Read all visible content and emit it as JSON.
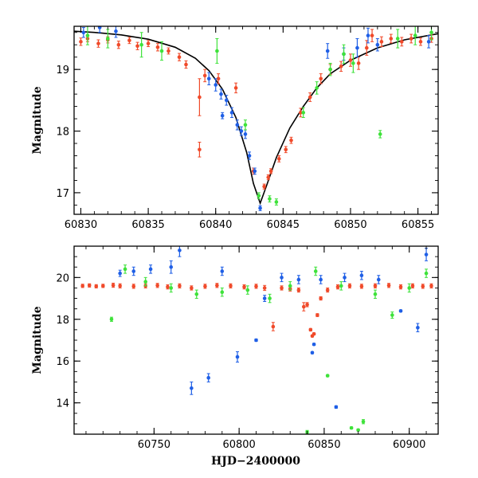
{
  "chart_data": [
    {
      "type": "scatter",
      "ylabel": "Magnitude",
      "xlabel": "",
      "xlim": [
        60829.5,
        60856.5
      ],
      "ylim": [
        19.7,
        16.65
      ],
      "y_inverted": true,
      "xticks": [
        60830,
        60835,
        60840,
        60845,
        60850,
        60855
      ],
      "yticks": [
        17,
        18,
        19
      ],
      "colors": {
        "red": "#f04a2a",
        "blue": "#1f5fe6",
        "green": "#3ee23a",
        "model": "#000000"
      },
      "model_curve": [
        [
          60829.5,
          19.62
        ],
        [
          60831,
          19.6
        ],
        [
          60833,
          19.56
        ],
        [
          60835,
          19.49
        ],
        [
          60837,
          19.36
        ],
        [
          60838.5,
          19.18
        ],
        [
          60839.5,
          18.98
        ],
        [
          60840.5,
          18.68
        ],
        [
          60841.5,
          18.22
        ],
        [
          60842.3,
          17.65
        ],
        [
          60842.8,
          17.15
        ],
        [
          60843.3,
          16.83
        ],
        [
          60843.8,
          17.13
        ],
        [
          60844.5,
          17.57
        ],
        [
          60845.5,
          18.05
        ],
        [
          60846.5,
          18.4
        ],
        [
          60847.5,
          18.7
        ],
        [
          60848.5,
          18.93
        ],
        [
          60850,
          19.15
        ],
        [
          60852,
          19.35
        ],
        [
          60854,
          19.48
        ],
        [
          60856.5,
          19.58
        ]
      ],
      "series": [
        {
          "color": "red",
          "points": [
            [
              60830,
              19.45,
              0.06
            ],
            [
              60830.5,
              19.5,
              0.05
            ],
            [
              60831.3,
              19.42,
              0.06
            ],
            [
              60832,
              19.48,
              0.05
            ],
            [
              60832.8,
              19.4,
              0.06
            ],
            [
              60833.6,
              19.47,
              0.05
            ],
            [
              60834.2,
              19.38,
              0.06
            ],
            [
              60835,
              19.42,
              0.05
            ],
            [
              60835.7,
              19.36,
              0.06
            ],
            [
              60836.5,
              19.3,
              0.05
            ],
            [
              60837.3,
              19.2,
              0.06
            ],
            [
              60837.8,
              19.08,
              0.06
            ],
            [
              60838.8,
              17.7,
              0.12
            ],
            [
              60838.8,
              18.55,
              0.3
            ],
            [
              60839.2,
              18.9,
              0.1
            ],
            [
              60840.2,
              18.85,
              0.08
            ],
            [
              60841.5,
              18.7,
              0.08
            ],
            [
              60842.8,
              17.35,
              0.05
            ],
            [
              60843.6,
              17.1,
              0.04
            ],
            [
              60843.9,
              17.25,
              0.04
            ],
            [
              60844.1,
              17.35,
              0.04
            ],
            [
              60844.7,
              17.55,
              0.05
            ],
            [
              60845.2,
              17.7,
              0.05
            ],
            [
              60845.6,
              17.85,
              0.05
            ],
            [
              60846.3,
              18.3,
              0.07
            ],
            [
              60847.0,
              18.55,
              0.07
            ],
            [
              60847.8,
              18.85,
              0.08
            ],
            [
              60848.5,
              19.0,
              0.08
            ],
            [
              60849.3,
              19.05,
              0.08
            ],
            [
              60850.0,
              19.15,
              0.1
            ],
            [
              60850.6,
              19.1,
              0.1
            ],
            [
              60851.2,
              19.35,
              0.12
            ],
            [
              60851.6,
              19.55,
              0.1
            ],
            [
              60852.3,
              19.45,
              0.08
            ],
            [
              60853.0,
              19.5,
              0.07
            ],
            [
              60853.8,
              19.45,
              0.07
            ],
            [
              60854.5,
              19.5,
              0.07
            ],
            [
              60855.2,
              19.45,
              0.06
            ],
            [
              60856.0,
              19.5,
              0.06
            ]
          ]
        },
        {
          "color": "blue",
          "points": [
            [
              60830.2,
              19.6,
              0.08
            ],
            [
              60831.4,
              19.68,
              0.08
            ],
            [
              60832.6,
              19.62,
              0.1
            ],
            [
              60839.5,
              18.85,
              0.1
            ],
            [
              60840.0,
              18.75,
              0.1
            ],
            [
              60840.4,
              18.6,
              0.08
            ],
            [
              60840.8,
              18.5,
              0.08
            ],
            [
              60841.2,
              18.3,
              0.08
            ],
            [
              60841.6,
              18.1,
              0.08
            ],
            [
              60841.9,
              18.0,
              0.07
            ],
            [
              60842.2,
              17.95,
              0.07
            ],
            [
              60842.5,
              17.6,
              0.06
            ],
            [
              60842.9,
              17.35,
              0.05
            ],
            [
              60843.3,
              16.75,
              0.04
            ],
            [
              60840.5,
              18.25,
              0.05
            ],
            [
              60848.3,
              19.3,
              0.12
            ],
            [
              60849.5,
              19.25,
              0.1
            ],
            [
              60850.5,
              19.35,
              0.15
            ],
            [
              60851.3,
              19.55,
              0.12
            ],
            [
              60852.0,
              19.4,
              0.1
            ],
            [
              60855.8,
              19.45,
              0.1
            ]
          ]
        },
        {
          "color": "green",
          "points": [
            [
              60830.5,
              19.55,
              0.15
            ],
            [
              60832.0,
              19.5,
              0.15
            ],
            [
              60834.5,
              19.4,
              0.2
            ],
            [
              60836.0,
              19.3,
              0.15
            ],
            [
              60840.1,
              19.3,
              0.2
            ],
            [
              60842.2,
              18.1,
              0.08
            ],
            [
              60843.2,
              16.95,
              0.05
            ],
            [
              60844.0,
              16.9,
              0.05
            ],
            [
              60844.5,
              16.85,
              0.05
            ],
            [
              60846.5,
              18.3,
              0.08
            ],
            [
              60847.5,
              18.7,
              0.1
            ],
            [
              60848.5,
              19.0,
              0.1
            ],
            [
              60849.5,
              19.25,
              0.15
            ],
            [
              60850.2,
              19.1,
              0.15
            ],
            [
              60852.2,
              17.95,
              0.06
            ],
            [
              60853.5,
              19.5,
              0.15
            ],
            [
              60854.8,
              19.55,
              0.15
            ],
            [
              60856.0,
              19.6,
              0.12
            ]
          ]
        }
      ]
    },
    {
      "type": "scatter",
      "ylabel": "Magnitude",
      "xlabel": "HJD−2400000",
      "xlim": [
        60703,
        60917
      ],
      "ylim": [
        21.5,
        12.5
      ],
      "y_inverted": true,
      "xticks": [
        60750,
        60800,
        60850,
        60900
      ],
      "yticks": [
        14,
        16,
        18,
        20
      ],
      "colors": {
        "red": "#f04a2a",
        "blue": "#1f5fe6",
        "green": "#3ee23a"
      },
      "series": [
        {
          "color": "red",
          "points": [
            [
              60708,
              19.6,
              0.08
            ],
            [
              60712,
              19.62,
              0.08
            ],
            [
              60716,
              19.58,
              0.08
            ],
            [
              60720,
              19.6,
              0.08
            ],
            [
              60726,
              19.63,
              0.1
            ],
            [
              60730,
              19.6,
              0.1
            ],
            [
              60738,
              19.58,
              0.1
            ],
            [
              60745,
              19.6,
              0.1
            ],
            [
              60752,
              19.62,
              0.1
            ],
            [
              60758,
              19.55,
              0.1
            ],
            [
              60765,
              19.6,
              0.1
            ],
            [
              60772,
              19.5,
              0.1
            ],
            [
              60780,
              19.58,
              0.1
            ],
            [
              60787,
              19.62,
              0.1
            ],
            [
              60795,
              19.6,
              0.1
            ],
            [
              60803,
              19.55,
              0.1
            ],
            [
              60810,
              19.58,
              0.1
            ],
            [
              60815,
              19.5,
              0.12
            ],
            [
              60820,
              17.65,
              0.2
            ],
            [
              60825,
              19.5,
              0.1
            ],
            [
              60830,
              19.45,
              0.1
            ],
            [
              60835,
              19.4,
              0.1
            ],
            [
              60838,
              18.6,
              0.2
            ],
            [
              60840,
              18.7,
              0.1
            ],
            [
              60842,
              17.5,
              0.06
            ],
            [
              60843,
              17.2,
              0.05
            ],
            [
              60844,
              17.3,
              0.05
            ],
            [
              60846,
              18.2,
              0.07
            ],
            [
              60848,
              19.0,
              0.08
            ],
            [
              60852,
              19.4,
              0.1
            ],
            [
              60858,
              19.55,
              0.1
            ],
            [
              60865,
              19.6,
              0.1
            ],
            [
              60872,
              19.58,
              0.1
            ],
            [
              60880,
              19.6,
              0.1
            ],
            [
              60888,
              19.62,
              0.1
            ],
            [
              60895,
              19.55,
              0.1
            ],
            [
              60902,
              19.6,
              0.1
            ],
            [
              60908,
              19.58,
              0.1
            ],
            [
              60913,
              19.6,
              0.1
            ]
          ]
        },
        {
          "color": "blue",
          "points": [
            [
              60730,
              20.2,
              0.15
            ],
            [
              60738,
              20.3,
              0.2
            ],
            [
              60748,
              20.4,
              0.2
            ],
            [
              60760,
              20.5,
              0.3
            ],
            [
              60765,
              21.3,
              0.3
            ],
            [
              60772,
              14.7,
              0.3
            ],
            [
              60782,
              15.2,
              0.2
            ],
            [
              60790,
              20.3,
              0.2
            ],
            [
              60799,
              16.2,
              0.25
            ],
            [
              60810,
              17.0,
              0.06
            ],
            [
              60815,
              19.0,
              0.15
            ],
            [
              60825,
              20.0,
              0.2
            ],
            [
              60835,
              19.9,
              0.2
            ],
            [
              60843,
              16.4,
              0.05
            ],
            [
              60844,
              16.8,
              0.05
            ],
            [
              60848,
              19.9,
              0.2
            ],
            [
              60857,
              13.8,
              0.06
            ],
            [
              60862,
              20.0,
              0.2
            ],
            [
              60872,
              20.1,
              0.2
            ],
            [
              60882,
              19.9,
              0.2
            ],
            [
              60895,
              18.4,
              0.05
            ],
            [
              60905,
              17.6,
              0.2
            ],
            [
              60910,
              21.1,
              0.3
            ]
          ]
        },
        {
          "color": "green",
          "points": [
            [
              60725,
              18.0,
              0.1
            ],
            [
              60733,
              20.4,
              0.2
            ],
            [
              60745,
              19.8,
              0.2
            ],
            [
              60760,
              19.5,
              0.2
            ],
            [
              60775,
              19.2,
              0.2
            ],
            [
              60790,
              19.3,
              0.2
            ],
            [
              60805,
              19.4,
              0.2
            ],
            [
              60818,
              19.0,
              0.2
            ],
            [
              60830,
              19.6,
              0.2
            ],
            [
              60840,
              12.6,
              0.08
            ],
            [
              60845,
              20.3,
              0.2
            ],
            [
              60852,
              15.3,
              0.05
            ],
            [
              60860,
              19.6,
              0.2
            ],
            [
              60866,
              12.8,
              0.05
            ],
            [
              60870,
              12.7,
              0.05
            ],
            [
              60873,
              13.1,
              0.1
            ],
            [
              60880,
              19.2,
              0.2
            ],
            [
              60890,
              18.2,
              0.15
            ],
            [
              60900,
              19.5,
              0.2
            ],
            [
              60910,
              20.2,
              0.2
            ]
          ]
        }
      ]
    }
  ]
}
